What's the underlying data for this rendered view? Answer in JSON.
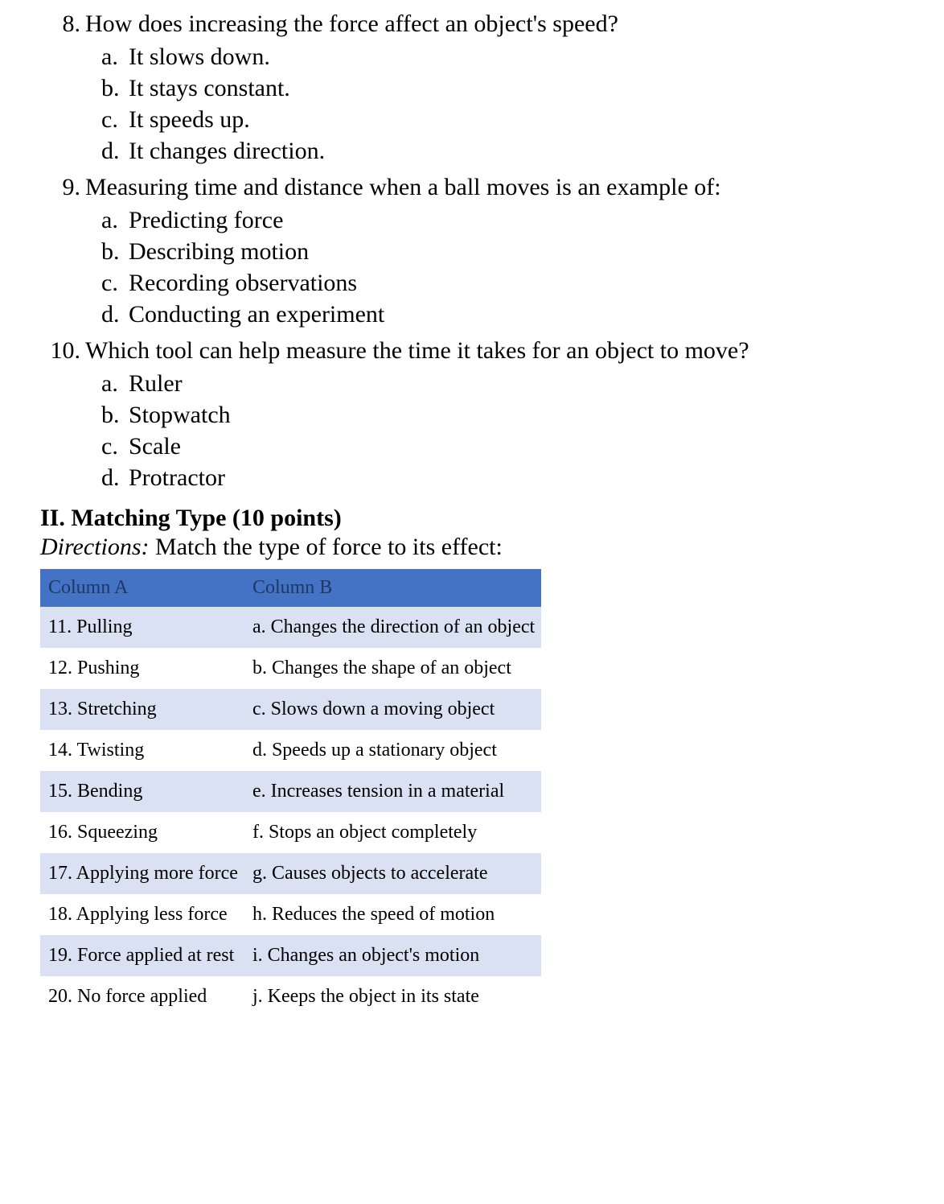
{
  "questions": [
    {
      "number": "8.",
      "text": "How does increasing the force affect an object's speed?",
      "choices": [
        {
          "letter": "a.",
          "text": "It slows down."
        },
        {
          "letter": "b.",
          "text": "It stays constant."
        },
        {
          "letter": "c.",
          "text": "It speeds up."
        },
        {
          "letter": "d.",
          "text": "It changes direction."
        }
      ]
    },
    {
      "number": "9.",
      "text": "Measuring time and distance when a ball moves is an example of:",
      "choices": [
        {
          "letter": "a.",
          "text": "Predicting force"
        },
        {
          "letter": "b.",
          "text": "Describing motion"
        },
        {
          "letter": "c.",
          "text": "Recording observations"
        },
        {
          "letter": "d.",
          "text": "Conducting an experiment"
        }
      ]
    },
    {
      "number": "10.",
      "text": "Which tool can help measure the time it takes for an object to move?",
      "choices": [
        {
          "letter": "a.",
          "text": "Ruler"
        },
        {
          "letter": "b.",
          "text": "Stopwatch"
        },
        {
          "letter": "c.",
          "text": "Scale"
        },
        {
          "letter": "d.",
          "text": "Protractor"
        }
      ]
    }
  ],
  "section2": {
    "heading": "II. Matching Type (10 points)",
    "directions_label": "Directions:",
    "directions_text": " Match the type of force to its effect:",
    "table": {
      "header_bg": "#4472c4",
      "header_fg": "#1f3864",
      "row_bg_odd": "#d9e1f2",
      "row_bg_even": "#ffffff",
      "colA_header": "Column A",
      "colB_header": "Column B",
      "rows": [
        {
          "a": "11. Pulling",
          "b": "a. Changes the direction of an object"
        },
        {
          "a": "12. Pushing",
          "b": "b. Changes the shape of an object"
        },
        {
          "a": "13. Stretching",
          "b": "c. Slows down a moving object"
        },
        {
          "a": "14. Twisting",
          "b": "d. Speeds up a stationary object"
        },
        {
          "a": "15. Bending",
          "b": "e. Increases tension in a material"
        },
        {
          "a": "16. Squeezing",
          "b": "f. Stops an object completely"
        },
        {
          "a": "17. Applying more force",
          "b": "g. Causes objects to accelerate"
        },
        {
          "a": "18. Applying less force",
          "b": "h. Reduces the speed of motion"
        },
        {
          "a": "19. Force applied at rest",
          "b": "i. Changes an object's motion"
        },
        {
          "a": "20. No force applied",
          "b": "j. Keeps the object in its state"
        }
      ]
    }
  }
}
